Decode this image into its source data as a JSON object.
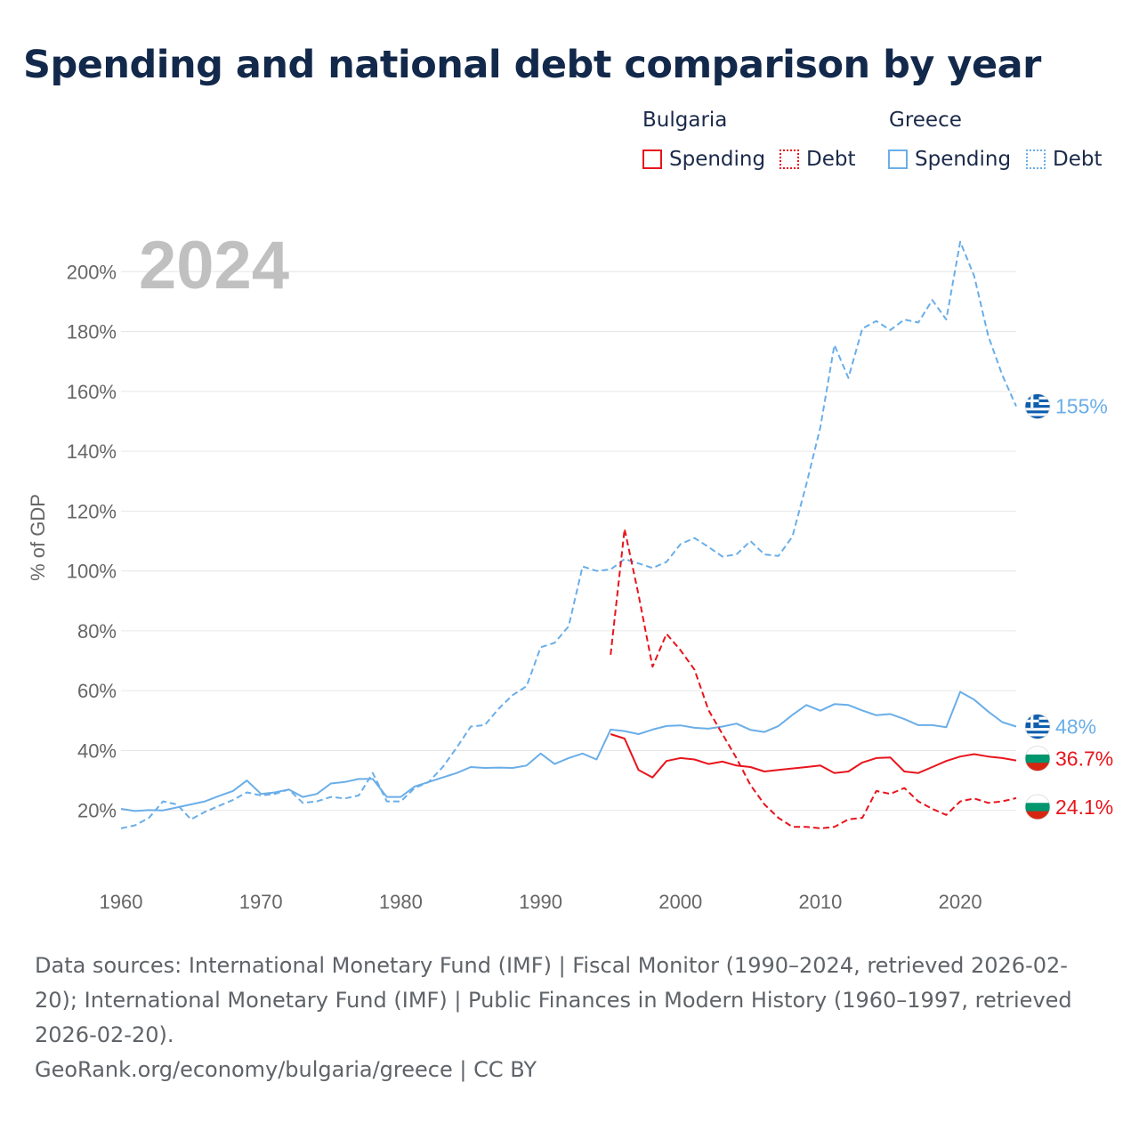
{
  "title": "Spending and national debt comparison by year",
  "legend": {
    "groups": [
      {
        "name": "Bulgaria",
        "items": [
          "Spending",
          "Debt"
        ]
      },
      {
        "name": "Greece",
        "items": [
          "Spending",
          "Debt"
        ]
      }
    ]
  },
  "colors": {
    "bulgaria": "#e8141c",
    "greece": "#6aaee8",
    "grid": "#e6e6e6",
    "axis_text": "#666666",
    "year_label": "#c0c0c0"
  },
  "chart_data": {
    "type": "line",
    "year_label": "2024",
    "ylabel": "% of GDP",
    "xlim": [
      1960,
      2024
    ],
    "ylim": [
      0,
      220
    ],
    "x_ticks": [
      1960,
      1970,
      1980,
      1990,
      2000,
      2010,
      2020
    ],
    "x_tick_labels": [
      "1960",
      "1970",
      "1980",
      "1990",
      "2000",
      "2010",
      "2020"
    ],
    "y_ticks": [
      20,
      40,
      60,
      80,
      100,
      120,
      140,
      160,
      180,
      200
    ],
    "y_tick_labels": [
      "20%",
      "40%",
      "60%",
      "80%",
      "100%",
      "120%",
      "140%",
      "160%",
      "180%",
      "200%"
    ],
    "series": [
      {
        "name": "Greece Spending",
        "country": "Greece",
        "kind": "Spending",
        "color": "#6aaee8",
        "dash": false,
        "x": [
          1960,
          1961,
          1962,
          1963,
          1964,
          1965,
          1966,
          1967,
          1968,
          1969,
          1970,
          1971,
          1972,
          1973,
          1974,
          1975,
          1976,
          1977,
          1978,
          1979,
          1980,
          1981,
          1982,
          1983,
          1984,
          1985,
          1986,
          1987,
          1988,
          1989,
          1990,
          1991,
          1992,
          1993,
          1994,
          1995,
          1996,
          1997,
          1998,
          1999,
          2000,
          2001,
          2002,
          2003,
          2004,
          2005,
          2006,
          2007,
          2008,
          2009,
          2010,
          2011,
          2012,
          2013,
          2014,
          2015,
          2016,
          2017,
          2018,
          2019,
          2020,
          2021,
          2022,
          2023,
          2024
        ],
        "values": [
          20.5,
          19.8,
          20.1,
          20.0,
          21.0,
          22.0,
          23.0,
          24.8,
          26.5,
          30.0,
          25.5,
          26.0,
          27.0,
          24.5,
          25.5,
          29.0,
          29.5,
          30.5,
          30.5,
          24.5,
          24.5,
          28.0,
          29.5,
          31.0,
          32.5,
          34.5,
          34.2,
          34.3,
          34.2,
          35.0,
          39.0,
          35.5,
          37.5,
          39.0,
          37.0,
          47.0,
          46.5,
          45.5,
          47.0,
          48.2,
          48.4,
          47.6,
          47.3,
          48.0,
          49.0,
          46.9,
          46.2,
          48.2,
          51.9,
          55.2,
          53.3,
          55.5,
          55.2,
          53.4,
          51.8,
          52.2,
          50.5,
          48.5,
          48.5,
          47.8,
          59.6,
          57.0,
          53.0,
          49.5,
          48.0
        ],
        "end_label": "48%"
      },
      {
        "name": "Greece Debt",
        "country": "Greece",
        "kind": "Debt",
        "color": "#6aaee8",
        "dash": true,
        "x": [
          1960,
          1961,
          1962,
          1963,
          1964,
          1965,
          1966,
          1967,
          1968,
          1969,
          1970,
          1971,
          1972,
          1973,
          1974,
          1975,
          1976,
          1977,
          1978,
          1979,
          1980,
          1981,
          1982,
          1983,
          1984,
          1985,
          1986,
          1987,
          1988,
          1989,
          1990,
          1991,
          1992,
          1993,
          1994,
          1995,
          1996,
          1997,
          1998,
          1999,
          2000,
          2001,
          2002,
          2003,
          2004,
          2005,
          2006,
          2007,
          2008,
          2009,
          2010,
          2011,
          2012,
          2013,
          2014,
          2015,
          2016,
          2017,
          2018,
          2019,
          2020,
          2021,
          2022,
          2023,
          2024
        ],
        "values": [
          14.0,
          15.0,
          17.5,
          23.0,
          22.0,
          17.0,
          19.5,
          21.5,
          23.5,
          26.0,
          25.0,
          25.5,
          27.0,
          22.5,
          23.0,
          24.5,
          24.0,
          25.0,
          32.5,
          23.0,
          23.0,
          27.5,
          29.5,
          34.5,
          41.0,
          48.0,
          48.5,
          54.0,
          58.5,
          61.5,
          74.5,
          76.0,
          81.5,
          101.5,
          100.0,
          100.5,
          104.0,
          102.5,
          101.0,
          103.0,
          109.0,
          111.0,
          108.0,
          104.8,
          105.5,
          110.0,
          105.5,
          105.0,
          111.5,
          129.0,
          148.0,
          175.5,
          164.5,
          181.0,
          183.5,
          180.5,
          184.0,
          183.0,
          190.5,
          184.0,
          210.0,
          198.5,
          178.5,
          165.5,
          155.0
        ],
        "end_label": "155%"
      },
      {
        "name": "Bulgaria Spending",
        "country": "Bulgaria",
        "kind": "Spending",
        "color": "#e8141c",
        "dash": false,
        "x": [
          1995,
          1996,
          1997,
          1998,
          1999,
          2000,
          2001,
          2002,
          2003,
          2004,
          2005,
          2006,
          2007,
          2008,
          2009,
          2010,
          2011,
          2012,
          2013,
          2014,
          2015,
          2016,
          2017,
          2018,
          2019,
          2020,
          2021,
          2022,
          2023,
          2024
        ],
        "values": [
          45.5,
          44.0,
          33.5,
          31.0,
          36.5,
          37.5,
          37.0,
          35.5,
          36.3,
          35.0,
          34.5,
          33.0,
          33.5,
          34.0,
          34.5,
          35.0,
          32.5,
          33.0,
          36.0,
          37.5,
          37.7,
          33.0,
          32.5,
          34.5,
          36.5,
          38.0,
          38.8,
          38.0,
          37.5,
          36.7
        ],
        "end_label": "36.7%"
      },
      {
        "name": "Bulgaria Debt",
        "country": "Bulgaria",
        "kind": "Debt",
        "color": "#e8141c",
        "dash": true,
        "x": [
          1995,
          1996,
          1997,
          1998,
          1999,
          2000,
          2001,
          2002,
          2003,
          2004,
          2005,
          2006,
          2007,
          2008,
          2009,
          2010,
          2011,
          2012,
          2013,
          2014,
          2015,
          2016,
          2017,
          2018,
          2019,
          2020,
          2021,
          2022,
          2023,
          2024
        ],
        "values": [
          72.0,
          114.0,
          92.0,
          68.0,
          79.0,
          73.5,
          67.0,
          53.5,
          45.5,
          37.5,
          28.5,
          22.0,
          17.5,
          14.5,
          14.5,
          14.0,
          14.5,
          17.0,
          17.5,
          26.5,
          25.5,
          27.5,
          23.0,
          20.5,
          18.5,
          23.0,
          24.0,
          22.5,
          23.0,
          24.1
        ],
        "end_label": "24.1%"
      }
    ]
  },
  "footer": {
    "sources": "Data sources: International Monetary Fund (IMF) | Fiscal Monitor (1990–2024, retrieved 2026-02-20); International Monetary Fund (IMF) | Public Finances in Modern History (1960–1997, retrieved 2026-02-20).",
    "credit": "GeoRank.org/economy/bulgaria/greece | CC BY"
  }
}
